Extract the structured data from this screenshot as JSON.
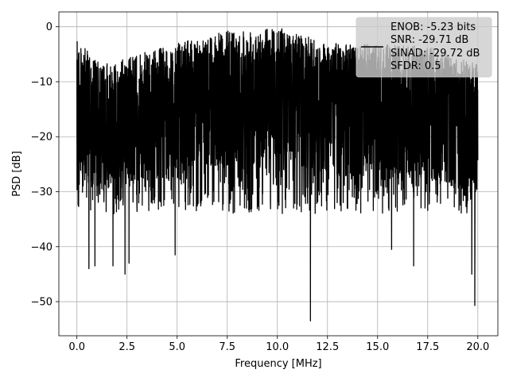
{
  "chart_data": {
    "type": "line",
    "title": "",
    "xlabel": "Frequency [MHz]",
    "ylabel": "PSD [dB]",
    "xlim": [
      -0.9,
      21.0
    ],
    "ylim": [
      -56.2,
      2.7
    ],
    "xticks": [
      0.0,
      2.5,
      5.0,
      7.5,
      10.0,
      12.5,
      15.0,
      17.5,
      20.0
    ],
    "xtick_labels": [
      "0.0",
      "2.5",
      "5.0",
      "7.5",
      "10.0",
      "12.5",
      "15.0",
      "17.5",
      "20.0"
    ],
    "yticks": [
      0,
      -10,
      -20,
      -30,
      -40,
      -50
    ],
    "ytick_labels": [
      "0",
      "−10",
      "−20",
      "−30",
      "−40",
      "−50"
    ],
    "grid": true,
    "legend_position": "top-right",
    "series": [
      {
        "color": "#000000",
        "description_points": [
          [
            0.0,
            -6.0
          ],
          [
            0.08,
            -2.7
          ],
          [
            1.2,
            -7.0
          ],
          [
            4.5,
            -3.5
          ],
          [
            7.8,
            -0.5
          ],
          [
            10.0,
            0.0
          ],
          [
            12.5,
            -3.0
          ],
          [
            17.5,
            -3.5
          ],
          [
            19.6,
            -6.5
          ]
        ],
        "deep_dips": [
          [
            0.6,
            -44.0
          ],
          [
            0.9,
            -43.5
          ],
          [
            1.8,
            -43.5
          ],
          [
            2.4,
            -45.0
          ],
          [
            2.6,
            -43.0
          ],
          [
            4.9,
            -41.5
          ],
          [
            11.65,
            -53.5
          ],
          [
            15.7,
            -40.5
          ],
          [
            16.8,
            -43.5
          ],
          [
            19.7,
            -45.0
          ],
          [
            19.85,
            -50.7
          ]
        ]
      }
    ],
    "legend": [
      "ENOB: -5.23 bits",
      "SNR: -29.71 dB",
      "SINAD: -29.72 dB",
      "SFDR: 0.5"
    ]
  }
}
